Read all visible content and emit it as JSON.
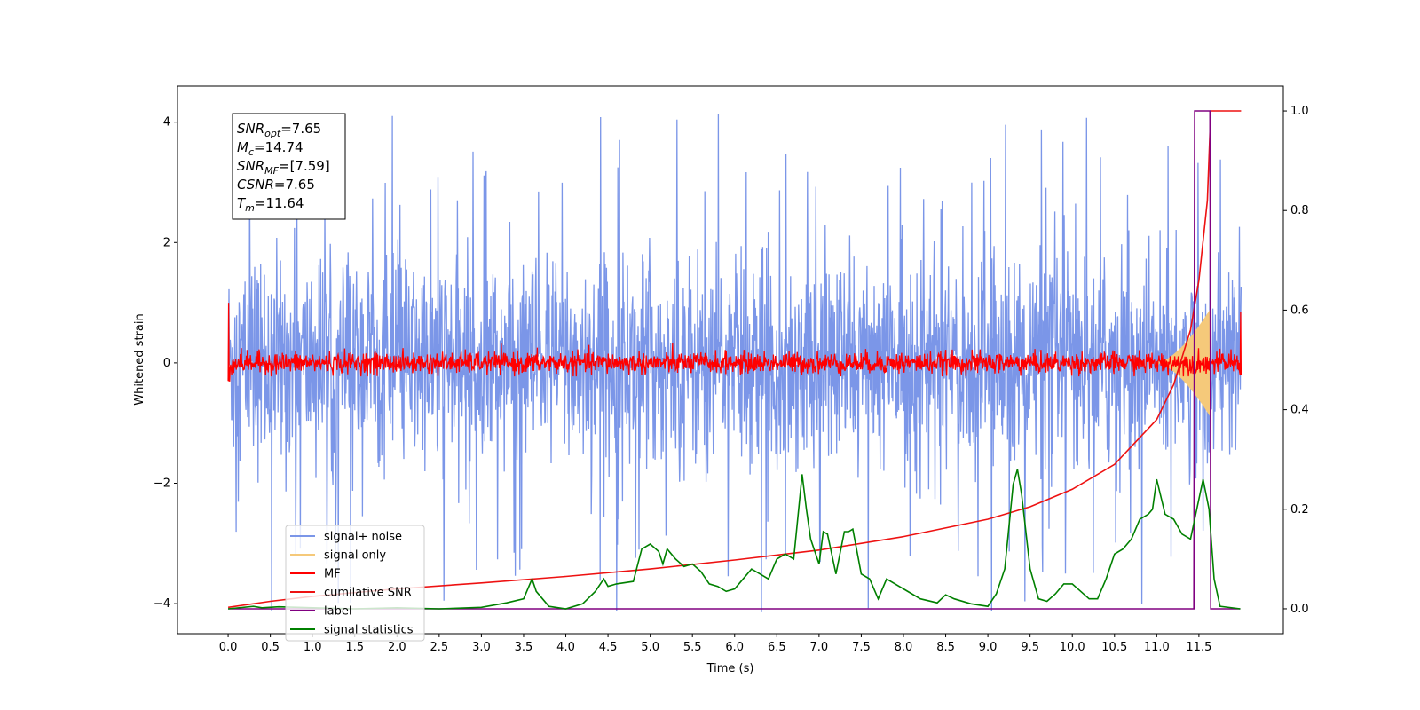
{
  "chart_data": {
    "type": "line",
    "xlabel": "Time (s)",
    "ylabel": "Whitened strain",
    "xlim": [
      -0.6,
      12.5
    ],
    "ylim": [
      -4.5,
      4.6
    ],
    "y2lim": [
      -0.05,
      1.05
    ],
    "x_ticks": [
      "0.0",
      "0.5",
      "1.0",
      "1.5",
      "2.0",
      "2.5",
      "3.0",
      "3.5",
      "4.0",
      "4.5",
      "5.0",
      "5.5",
      "6.0",
      "6.5",
      "7.0",
      "7.5",
      "8.0",
      "8.5",
      "9.0",
      "9.5",
      "10.0",
      "10.5",
      "11.0",
      "11.5"
    ],
    "y_ticks": [
      "−4",
      "−2",
      "0",
      "2",
      "4"
    ],
    "y2_ticks": [
      "0.0",
      "0.2",
      "0.4",
      "0.6",
      "0.8",
      "1.0"
    ],
    "grid": false,
    "legend": {
      "placement": "lower-left",
      "entries": [
        {
          "label": "signal+ noise",
          "color": "#7b96e8"
        },
        {
          "label": "signal only",
          "color": "#f5c97a"
        },
        {
          "label": "MF",
          "color": "#ff0000"
        },
        {
          "label": "cumilative SNR",
          "color": "#ee1111"
        },
        {
          "label": "label",
          "color": "#800080"
        },
        {
          "label": "signal statistics",
          "color": "#008000"
        }
      ]
    },
    "annotation": {
      "lines": [
        {
          "sym": "SNR",
          "sub": "opt",
          "value": "=7.65"
        },
        {
          "sym": "M",
          "sub": "c",
          "value": "=14.74"
        },
        {
          "sym": "SNR",
          "sub": "MF",
          "value": "=[7.59]"
        },
        {
          "sym": "CSNR",
          "sub": "",
          "value": "=7.65"
        },
        {
          "sym": "T",
          "sub": "m",
          "value": "=11.64"
        }
      ]
    },
    "series": [
      {
        "name": "signal+ noise",
        "axis": "left",
        "color": "#7b96e8",
        "x_range": [
          0,
          12.0
        ],
        "envelope_typical": 1.6,
        "envelope_max": 4.15
      },
      {
        "name": "signal only",
        "axis": "left",
        "color": "#f5c97a",
        "chirp_start": 11.0,
        "chirp_end": 11.64,
        "peak_amplitude": 0.9
      },
      {
        "name": "MF",
        "axis": "left",
        "color": "#ff0000",
        "x_range": [
          0,
          12.0
        ],
        "envelope_typical": 0.2,
        "envelope_max": 0.45
      },
      {
        "name": "cumilative SNR",
        "axis": "right",
        "color": "#ee1111",
        "x": [
          0,
          0.5,
          1,
          2,
          3,
          4,
          5,
          6,
          7,
          8,
          9,
          9.5,
          10,
          10.5,
          11,
          11.2,
          11.4,
          11.5,
          11.6,
          11.64,
          12.0
        ],
        "y": [
          0.003,
          0.015,
          0.025,
          0.04,
          0.052,
          0.065,
          0.08,
          0.098,
          0.118,
          0.145,
          0.18,
          0.205,
          0.24,
          0.29,
          0.38,
          0.45,
          0.56,
          0.66,
          0.82,
          1.0,
          1.0
        ]
      },
      {
        "name": "label",
        "axis": "right",
        "color": "#800080",
        "x": [
          0,
          11.44,
          11.45,
          11.63,
          11.64,
          11.99
        ],
        "y": [
          0,
          0,
          1,
          1,
          0,
          0
        ]
      },
      {
        "name": "signal statistics",
        "axis": "right",
        "color": "#008000",
        "x": [
          0,
          0.3,
          0.4,
          0.6,
          1.0,
          1.5,
          2.0,
          2.5,
          3.0,
          3.3,
          3.5,
          3.6,
          3.65,
          3.8,
          4.0,
          4.2,
          4.35,
          4.45,
          4.5,
          4.6,
          4.8,
          4.9,
          5.0,
          5.1,
          5.15,
          5.2,
          5.3,
          5.4,
          5.5,
          5.6,
          5.7,
          5.8,
          5.9,
          6.0,
          6.1,
          6.2,
          6.3,
          6.4,
          6.5,
          6.6,
          6.65,
          6.7,
          6.8,
          6.85,
          6.9,
          7.0,
          7.05,
          7.1,
          7.2,
          7.3,
          7.35,
          7.4,
          7.5,
          7.6,
          7.7,
          7.8,
          8.0,
          8.2,
          8.4,
          8.5,
          8.6,
          8.8,
          9.0,
          9.1,
          9.2,
          9.3,
          9.35,
          9.4,
          9.5,
          9.6,
          9.7,
          9.8,
          9.9,
          10.0,
          10.1,
          10.2,
          10.3,
          10.4,
          10.5,
          10.6,
          10.7,
          10.8,
          10.9,
          10.95,
          11.0,
          11.1,
          11.2,
          11.3,
          11.4,
          11.45,
          11.55,
          11.62,
          11.68,
          11.75,
          11.99
        ],
        "y": [
          0.0,
          0.005,
          0.002,
          0.004,
          0.002,
          0.0,
          0.002,
          0.0,
          0.003,
          0.012,
          0.02,
          0.06,
          0.035,
          0.005,
          0.0,
          0.01,
          0.035,
          0.06,
          0.045,
          0.05,
          0.055,
          0.12,
          0.13,
          0.115,
          0.09,
          0.12,
          0.1,
          0.085,
          0.09,
          0.075,
          0.05,
          0.045,
          0.035,
          0.04,
          0.06,
          0.08,
          0.07,
          0.06,
          0.1,
          0.11,
          0.105,
          0.1,
          0.27,
          0.2,
          0.14,
          0.09,
          0.155,
          0.15,
          0.07,
          0.155,
          0.155,
          0.16,
          0.07,
          0.06,
          0.02,
          0.06,
          0.04,
          0.02,
          0.012,
          0.028,
          0.02,
          0.01,
          0.005,
          0.03,
          0.08,
          0.25,
          0.28,
          0.23,
          0.08,
          0.02,
          0.015,
          0.03,
          0.05,
          0.05,
          0.035,
          0.02,
          0.02,
          0.06,
          0.11,
          0.12,
          0.14,
          0.18,
          0.19,
          0.2,
          0.26,
          0.19,
          0.18,
          0.15,
          0.14,
          0.18,
          0.26,
          0.2,
          0.06,
          0.005,
          0.0
        ]
      }
    ]
  }
}
